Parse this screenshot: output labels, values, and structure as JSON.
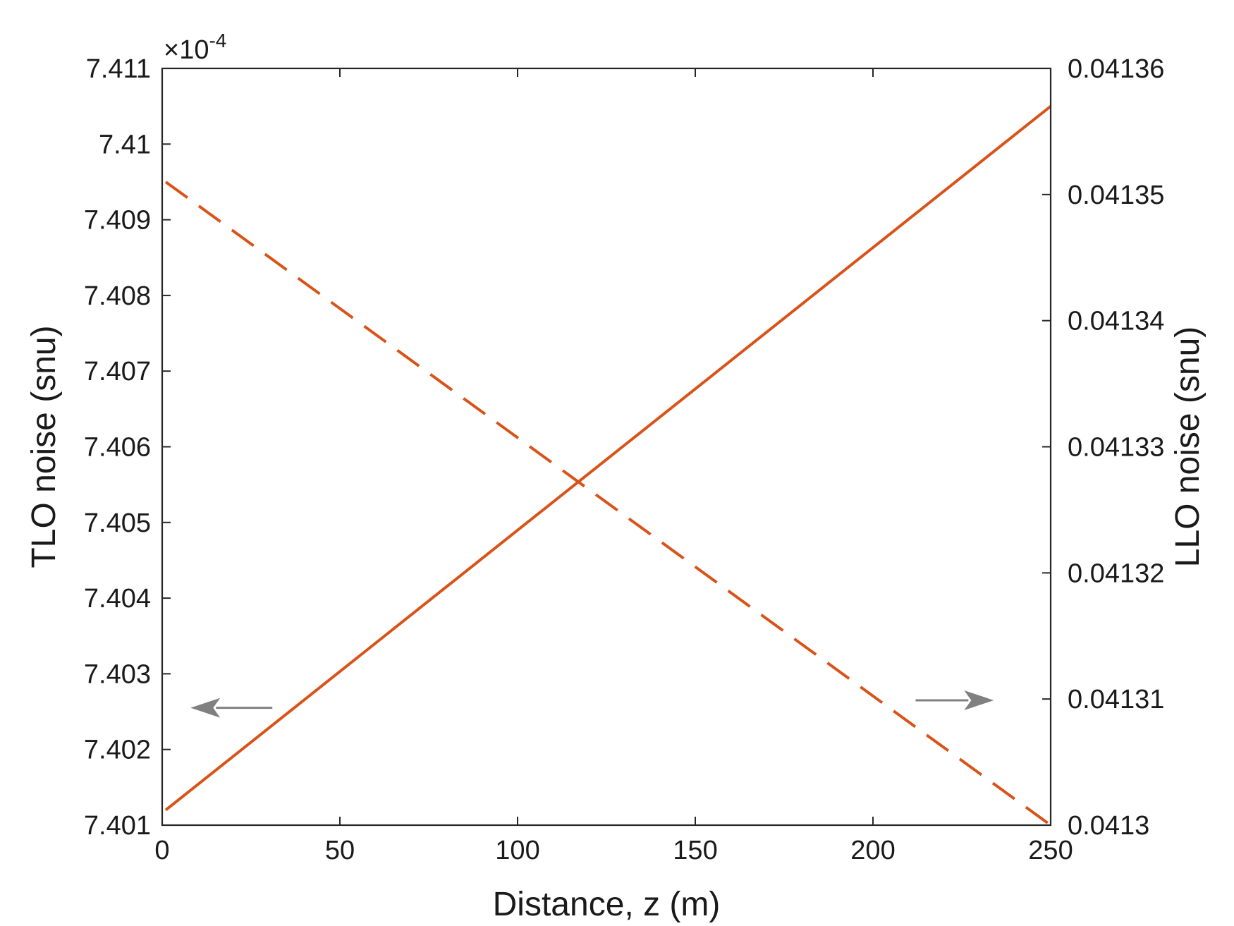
{
  "chart_data": {
    "type": "line",
    "xlabel": "Distance, z (m)",
    "ylabel_left": "TLO noise (snu)",
    "ylabel_right": "LLO noise (snu)",
    "xlim": [
      0,
      250
    ],
    "ylim_left": [
      7.401,
      7.411
    ],
    "ylim_right": [
      0.0413,
      0.04136
    ],
    "x_ticks": [
      "0",
      "50",
      "100",
      "150",
      "200",
      "250"
    ],
    "y_left_ticks": [
      "7.401",
      "7.402",
      "7.403",
      "7.404",
      "7.405",
      "7.406",
      "7.407",
      "7.408",
      "7.409",
      "7.41",
      "7.411"
    ],
    "y_right_ticks": [
      "0.0413",
      "0.04131",
      "0.04132",
      "0.04133",
      "0.04134",
      "0.04135",
      "0.04136"
    ],
    "y_left_multiplier": "×10",
    "y_left_multiplier_exp": "-4",
    "grid": false,
    "color": "#d95319",
    "arrow_color": "#808080",
    "series": [
      {
        "axis": "left",
        "style": "solid",
        "x": [
          1,
          250
        ],
        "y": [
          7.4012,
          7.4105
        ]
      },
      {
        "axis": "right",
        "style": "dashed",
        "x": [
          1,
          250
        ],
        "y": [
          0.041351,
          0.0413
        ]
      }
    ],
    "annotations": [
      {
        "type": "arrow",
        "direction": "left",
        "points_to": "left axis",
        "from": [
          31,
          7.40255
        ],
        "to": [
          8,
          7.40255
        ]
      },
      {
        "type": "arrow",
        "direction": "right",
        "points_to": "right axis",
        "from": [
          212,
          7.40265
        ],
        "to": [
          234,
          7.40265
        ]
      }
    ]
  }
}
